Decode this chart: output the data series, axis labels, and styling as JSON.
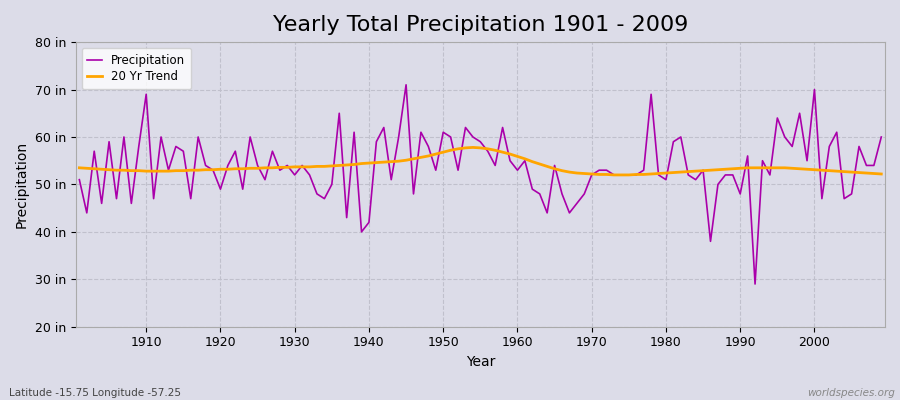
{
  "title": "Yearly Total Precipitation 1901 - 2009",
  "xlabel": "Year",
  "ylabel": "Precipitation",
  "lat_lon_label": "Latitude -15.75 Longitude -57.25",
  "watermark": "worldspecies.org",
  "years": [
    1901,
    1902,
    1903,
    1904,
    1905,
    1906,
    1907,
    1908,
    1909,
    1910,
    1911,
    1912,
    1913,
    1914,
    1915,
    1916,
    1917,
    1918,
    1919,
    1920,
    1921,
    1922,
    1923,
    1924,
    1925,
    1926,
    1927,
    1928,
    1929,
    1930,
    1931,
    1932,
    1933,
    1934,
    1935,
    1936,
    1937,
    1938,
    1939,
    1940,
    1941,
    1942,
    1943,
    1944,
    1945,
    1946,
    1947,
    1948,
    1949,
    1950,
    1951,
    1952,
    1953,
    1954,
    1955,
    1956,
    1957,
    1958,
    1959,
    1960,
    1961,
    1962,
    1963,
    1964,
    1965,
    1966,
    1967,
    1968,
    1969,
    1970,
    1971,
    1972,
    1973,
    1974,
    1975,
    1976,
    1977,
    1978,
    1979,
    1980,
    1981,
    1982,
    1983,
    1984,
    1985,
    1986,
    1987,
    1988,
    1989,
    1990,
    1991,
    1992,
    1993,
    1994,
    1995,
    1996,
    1997,
    1998,
    1999,
    2000,
    2001,
    2002,
    2003,
    2004,
    2005,
    2006,
    2007,
    2008,
    2009
  ],
  "precip": [
    51,
    44,
    57,
    46,
    59,
    47,
    60,
    46,
    58,
    69,
    47,
    60,
    53,
    58,
    57,
    47,
    60,
    54,
    53,
    49,
    54,
    57,
    49,
    60,
    54,
    51,
    57,
    53,
    54,
    52,
    54,
    52,
    48,
    47,
    50,
    65,
    43,
    61,
    40,
    42,
    59,
    62,
    51,
    60,
    71,
    48,
    61,
    58,
    53,
    61,
    60,
    53,
    62,
    60,
    59,
    57,
    54,
    62,
    55,
    53,
    55,
    49,
    48,
    44,
    54,
    48,
    44,
    46,
    48,
    52,
    53,
    53,
    52,
    52,
    52,
    52,
    53,
    69,
    52,
    51,
    59,
    60,
    52,
    51,
    53,
    38,
    50,
    52,
    52,
    48,
    56,
    29,
    55,
    52,
    64,
    60,
    58,
    65,
    55,
    70,
    47,
    58,
    61,
    47,
    48,
    58,
    54,
    54,
    60
  ],
  "trend": [
    53.5,
    53.4,
    53.3,
    53.2,
    53.1,
    53.0,
    53.0,
    52.9,
    52.9,
    52.8,
    52.8,
    52.8,
    52.8,
    52.9,
    52.9,
    53.0,
    53.0,
    53.1,
    53.1,
    53.2,
    53.2,
    53.3,
    53.3,
    53.4,
    53.4,
    53.5,
    53.5,
    53.6,
    53.6,
    53.7,
    53.7,
    53.7,
    53.8,
    53.8,
    53.9,
    54.0,
    54.1,
    54.2,
    54.4,
    54.5,
    54.6,
    54.7,
    54.8,
    54.9,
    55.1,
    55.4,
    55.7,
    56.0,
    56.4,
    56.8,
    57.2,
    57.5,
    57.7,
    57.8,
    57.7,
    57.5,
    57.2,
    56.8,
    56.4,
    55.9,
    55.4,
    54.8,
    54.3,
    53.8,
    53.3,
    52.9,
    52.6,
    52.4,
    52.3,
    52.2,
    52.1,
    52.1,
    52.0,
    52.0,
    52.0,
    52.1,
    52.1,
    52.2,
    52.3,
    52.4,
    52.5,
    52.6,
    52.7,
    52.8,
    52.9,
    53.0,
    53.1,
    53.2,
    53.3,
    53.4,
    53.5,
    53.5,
    53.5,
    53.5,
    53.5,
    53.5,
    53.4,
    53.3,
    53.2,
    53.1,
    53.0,
    52.9,
    52.8,
    52.7,
    52.6,
    52.5,
    52.4,
    52.3,
    52.2
  ],
  "precip_color": "#aa00aa",
  "trend_color": "#FFA500",
  "bg_color": "#dcdce8",
  "plot_bg_color": "#dcdce8",
  "fig_bg_color": "#dcdce8",
  "ylim": [
    20,
    80
  ],
  "yticks": [
    20,
    30,
    40,
    50,
    60,
    70,
    80
  ],
  "xtick_years": [
    1910,
    1920,
    1930,
    1940,
    1950,
    1960,
    1970,
    1980,
    1990,
    2000
  ],
  "title_fontsize": 16,
  "axis_label_fontsize": 10,
  "tick_fontsize": 9
}
